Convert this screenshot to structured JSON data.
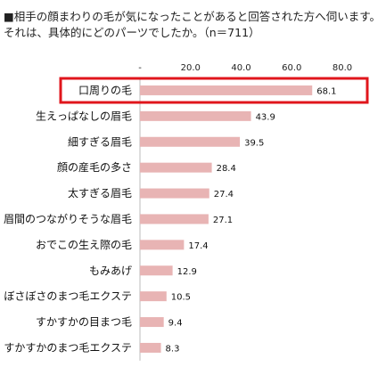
{
  "chart_data": {
    "type": "bar",
    "orientation": "horizontal",
    "title": "■相手の顔まわりの毛が気になったことがあると回答された方へ伺います。それは、具体的にどのパーツでしたか。（n＝711）",
    "categories": [
      "口周りの毛",
      "生えっぱなしの眉毛",
      "細すぎる眉毛",
      "顔の産毛の多さ",
      "太すぎる眉毛",
      "眉間のつながりそうな眉毛",
      "おでこの生え際の毛",
      "もみあげ",
      "ぼさぼさのまつ毛エクステ",
      "すかすかの目まつ毛",
      "すかすかのまつ毛エクステ"
    ],
    "values": [
      68.1,
      43.9,
      39.5,
      28.4,
      27.4,
      27.1,
      17.4,
      12.9,
      10.5,
      9.4,
      8.3
    ],
    "value_labels": [
      "68.1",
      "43.9",
      "39.5",
      "28.4",
      "27.4",
      "27.1",
      "17.4",
      "12.9",
      "10.5",
      "9.4",
      "8.3"
    ],
    "xlim": [
      0,
      80
    ],
    "xticks": [
      "-",
      "20.0",
      "40.0",
      "60.0",
      "80.0"
    ],
    "grid": false,
    "bar_color": "#e8b4b4",
    "highlight_color": "#e0161c",
    "highlight_index": 0
  }
}
